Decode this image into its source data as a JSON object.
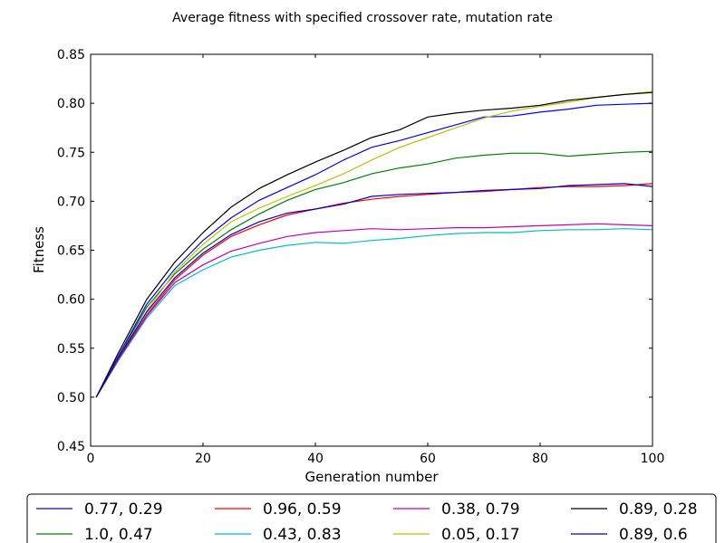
{
  "chart_data": {
    "type": "line",
    "title": "Average fitness with specified crossover rate, mutation rate",
    "xlabel": "Generation number",
    "ylabel": "Fitness",
    "xlim": [
      0,
      100
    ],
    "ylim": [
      0.45,
      0.85
    ],
    "xticks": [
      0,
      20,
      40,
      60,
      80,
      100
    ],
    "xtick_labels": [
      "0",
      "20",
      "40",
      "60",
      "80",
      "100"
    ],
    "yticks": [
      0.45,
      0.5,
      0.55,
      0.6,
      0.65,
      0.7,
      0.75,
      0.8,
      0.85
    ],
    "ytick_labels": [
      "0.45",
      "0.50",
      "0.55",
      "0.60",
      "0.65",
      "0.70",
      "0.75",
      "0.80",
      "0.85"
    ],
    "grid": false,
    "legend_position": "bottom",
    "x": [
      1,
      5,
      10,
      15,
      20,
      25,
      30,
      35,
      40,
      45,
      50,
      55,
      60,
      65,
      70,
      75,
      80,
      85,
      90,
      95,
      100
    ],
    "series": [
      {
        "name": "0.77, 0.29",
        "color": "#0000ff",
        "values": [
          0.5,
          0.543,
          0.595,
          0.631,
          0.66,
          0.683,
          0.701,
          0.714,
          0.727,
          0.742,
          0.755,
          0.762,
          0.77,
          0.778,
          0.786,
          0.787,
          0.791,
          0.794,
          0.798,
          0.799,
          0.8
        ]
      },
      {
        "name": "1.0, 0.47",
        "color": "#008000",
        "values": [
          0.5,
          0.542,
          0.592,
          0.626,
          0.651,
          0.671,
          0.687,
          0.701,
          0.712,
          0.719,
          0.728,
          0.734,
          0.738,
          0.744,
          0.747,
          0.749,
          0.749,
          0.746,
          0.748,
          0.75,
          0.751
        ]
      },
      {
        "name": "0.96, 0.59",
        "color": "#ff0000",
        "values": [
          0.5,
          0.54,
          0.584,
          0.62,
          0.645,
          0.664,
          0.676,
          0.686,
          0.692,
          0.698,
          0.702,
          0.705,
          0.707,
          0.709,
          0.71,
          0.712,
          0.714,
          0.715,
          0.715,
          0.716,
          0.718
        ]
      },
      {
        "name": "0.43, 0.83",
        "color": "#00bfbf",
        "values": [
          0.5,
          0.538,
          0.581,
          0.614,
          0.63,
          0.643,
          0.65,
          0.655,
          0.658,
          0.657,
          0.66,
          0.662,
          0.665,
          0.667,
          0.668,
          0.668,
          0.67,
          0.671,
          0.671,
          0.672,
          0.671
        ]
      },
      {
        "name": "0.38, 0.79",
        "color": "#bf00bf",
        "values": [
          0.5,
          0.539,
          0.583,
          0.617,
          0.635,
          0.649,
          0.657,
          0.664,
          0.668,
          0.67,
          0.672,
          0.671,
          0.672,
          0.673,
          0.673,
          0.674,
          0.675,
          0.676,
          0.677,
          0.676,
          0.675
        ]
      },
      {
        "name": "0.05, 0.17",
        "color": "#bfbf00",
        "values": [
          0.5,
          0.541,
          0.588,
          0.628,
          0.656,
          0.679,
          0.693,
          0.705,
          0.716,
          0.728,
          0.742,
          0.755,
          0.765,
          0.775,
          0.785,
          0.792,
          0.797,
          0.801,
          0.806,
          0.809,
          0.812
        ]
      },
      {
        "name": "0.89, 0.28",
        "color": "#000000",
        "values": [
          0.5,
          0.546,
          0.6,
          0.638,
          0.668,
          0.694,
          0.713,
          0.727,
          0.74,
          0.752,
          0.765,
          0.773,
          0.786,
          0.79,
          0.793,
          0.795,
          0.798,
          0.803,
          0.806,
          0.809,
          0.811
        ]
      },
      {
        "name": "0.89, 0.6",
        "color": "#0000cc",
        "values": [
          0.5,
          0.541,
          0.587,
          0.622,
          0.647,
          0.666,
          0.679,
          0.688,
          0.692,
          0.697,
          0.705,
          0.707,
          0.708,
          0.709,
          0.711,
          0.712,
          0.713,
          0.716,
          0.717,
          0.718,
          0.715
        ]
      }
    ]
  }
}
